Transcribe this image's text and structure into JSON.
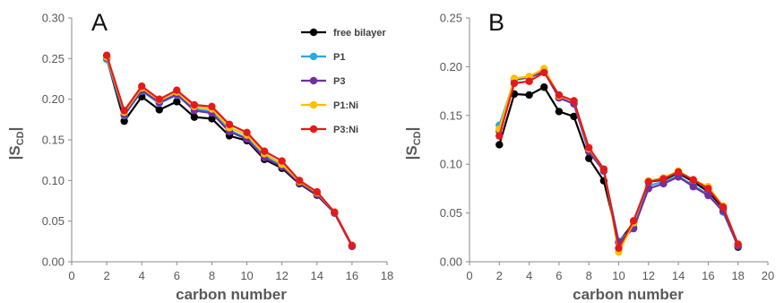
{
  "chart_data": [
    {
      "type": "line",
      "panel_label": "A",
      "xlabel": "carbon number",
      "ylabel": "|S",
      "ylabel_sub": "CD",
      "ylabel_end": "|",
      "xlim": [
        0,
        18
      ],
      "ylim": [
        0,
        0.3
      ],
      "xticks": [
        "0",
        "2",
        "4",
        "6",
        "8",
        "10",
        "12",
        "14",
        "16",
        "18"
      ],
      "yticks": [
        "0.00",
        "0.05",
        "0.10",
        "0.15",
        "0.20",
        "0.25",
        "0.30"
      ],
      "legend": "top-right",
      "series": [
        {
          "name": "free bilayer",
          "color": "#000000",
          "x": [
            2,
            3,
            4,
            5,
            6,
            7,
            8,
            9,
            10,
            11,
            12,
            13,
            14,
            15,
            16
          ],
          "y": [
            0.25,
            0.173,
            0.203,
            0.187,
            0.197,
            0.178,
            0.176,
            0.155,
            0.149,
            0.126,
            0.115,
            0.096,
            0.082,
            0.06,
            0.019
          ]
        },
        {
          "name": "P1",
          "color": "#29aae1",
          "x": [
            2,
            3,
            4,
            5,
            6,
            7,
            8,
            9,
            10,
            11,
            12,
            13,
            14,
            15,
            16
          ],
          "y": [
            0.249,
            0.18,
            0.21,
            0.195,
            0.205,
            0.188,
            0.185,
            0.162,
            0.152,
            0.13,
            0.118,
            0.097,
            0.083,
            0.06,
            0.019
          ]
        },
        {
          "name": "P3",
          "color": "#7030a0",
          "x": [
            2,
            3,
            4,
            5,
            6,
            7,
            8,
            9,
            10,
            11,
            12,
            13,
            14,
            15,
            16
          ],
          "y": [
            0.251,
            0.181,
            0.211,
            0.196,
            0.206,
            0.186,
            0.183,
            0.16,
            0.151,
            0.128,
            0.117,
            0.097,
            0.083,
            0.06,
            0.019
          ]
        },
        {
          "name": "P1:Ni",
          "color": "#ffc000",
          "x": [
            2,
            3,
            4,
            5,
            6,
            7,
            8,
            9,
            10,
            11,
            12,
            13,
            14,
            15,
            16
          ],
          "y": [
            0.252,
            0.184,
            0.214,
            0.199,
            0.209,
            0.191,
            0.188,
            0.165,
            0.156,
            0.133,
            0.12,
            0.099,
            0.085,
            0.061,
            0.02
          ]
        },
        {
          "name": "P3:Ni",
          "color": "#e31a1c",
          "x": [
            2,
            3,
            4,
            5,
            6,
            7,
            8,
            9,
            10,
            11,
            12,
            13,
            14,
            15,
            16
          ],
          "y": [
            0.254,
            0.186,
            0.216,
            0.2,
            0.211,
            0.193,
            0.191,
            0.169,
            0.159,
            0.136,
            0.124,
            0.1,
            0.086,
            0.061,
            0.02
          ]
        }
      ]
    },
    {
      "type": "line",
      "panel_label": "B",
      "xlabel": "carbon number",
      "ylabel": "|S",
      "ylabel_sub": "CD",
      "ylabel_end": "|",
      "xlim": [
        0,
        20
      ],
      "ylim": [
        0,
        0.25
      ],
      "xticks": [
        "0",
        "2",
        "4",
        "6",
        "8",
        "10",
        "12",
        "14",
        "16",
        "18",
        "20"
      ],
      "yticks": [
        "0.00",
        "0.05",
        "0.10",
        "0.15",
        "0.20",
        "0.25"
      ],
      "series": [
        {
          "name": "free bilayer",
          "color": "#000000",
          "x": [
            2,
            3,
            4,
            5,
            6,
            7,
            8,
            9,
            10,
            11,
            12,
            13,
            14,
            15,
            16,
            17,
            18
          ],
          "y": [
            0.12,
            0.172,
            0.171,
            0.179,
            0.154,
            0.149,
            0.106,
            0.083,
            0.02,
            0.04,
            0.082,
            0.084,
            0.091,
            0.082,
            0.072,
            0.055,
            0.015
          ]
        },
        {
          "name": "P1",
          "color": "#29aae1",
          "x": [
            2,
            3,
            4,
            5,
            6,
            7,
            8,
            9,
            10,
            11,
            12,
            13,
            14,
            15,
            16,
            17,
            18
          ],
          "y": [
            0.14,
            0.186,
            0.189,
            0.196,
            0.168,
            0.162,
            0.113,
            0.093,
            0.021,
            0.036,
            0.078,
            0.082,
            0.088,
            0.078,
            0.069,
            0.051,
            0.016
          ]
        },
        {
          "name": "P3",
          "color": "#7030a0",
          "x": [
            2,
            3,
            4,
            5,
            6,
            7,
            8,
            9,
            10,
            11,
            12,
            13,
            14,
            15,
            16,
            17,
            18
          ],
          "y": [
            0.134,
            0.187,
            0.189,
            0.195,
            0.168,
            0.162,
            0.113,
            0.093,
            0.02,
            0.034,
            0.075,
            0.08,
            0.087,
            0.077,
            0.068,
            0.052,
            0.016
          ]
        },
        {
          "name": "P1:Ni",
          "color": "#ffc000",
          "x": [
            2,
            3,
            4,
            5,
            6,
            7,
            8,
            9,
            10,
            11,
            12,
            13,
            14,
            15,
            16,
            17,
            18
          ],
          "y": [
            0.136,
            0.188,
            0.19,
            0.198,
            0.17,
            0.165,
            0.116,
            0.095,
            0.01,
            0.04,
            0.083,
            0.086,
            0.093,
            0.084,
            0.077,
            0.057,
            0.018
          ]
        },
        {
          "name": "P3:Ni",
          "color": "#e31a1c",
          "x": [
            2,
            3,
            4,
            5,
            6,
            7,
            8,
            9,
            10,
            11,
            12,
            13,
            14,
            15,
            16,
            17,
            18
          ],
          "y": [
            0.129,
            0.183,
            0.185,
            0.194,
            0.171,
            0.165,
            0.117,
            0.095,
            0.014,
            0.042,
            0.082,
            0.085,
            0.092,
            0.084,
            0.075,
            0.056,
            0.018
          ]
        }
      ]
    }
  ]
}
